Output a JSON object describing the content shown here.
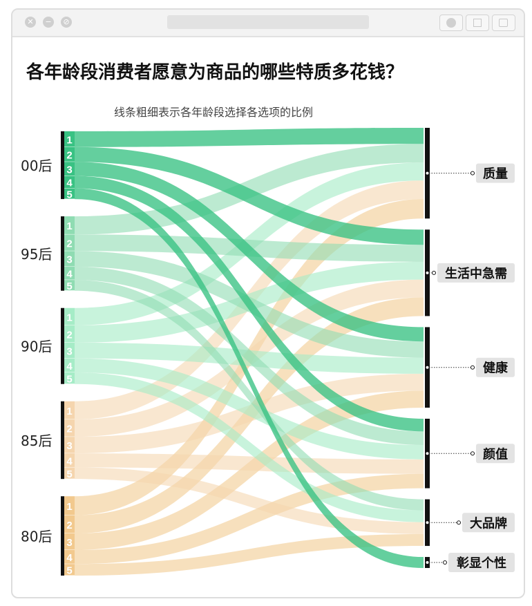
{
  "window": {
    "controls": [
      "close-icon",
      "minimize-icon",
      "maximize-icon"
    ],
    "toolbar_icons": [
      "record-icon",
      "share-icon",
      "copy-icon"
    ]
  },
  "title": "各年龄段消费者愿意为商品的哪些特质多花钱？",
  "subtitle": "线条粗细表示各年龄段选择各选项的比例",
  "colors": {
    "00后": "#39c283",
    "95后": "#8fdcb2",
    "90后": "#a6ecc7",
    "85后": "#f5d5ae",
    "80后": "#f2c98e"
  },
  "chart_data": {
    "type": "sankey",
    "title": "各年龄段消费者愿意为商品的哪些特质多花钱？",
    "subtitle": "线条粗细表示各年龄段选择各选项的比例",
    "sources": [
      "00后",
      "95后",
      "90后",
      "85后",
      "80后"
    ],
    "rank_labels": [
      "1",
      "2",
      "3",
      "4",
      "5"
    ],
    "targets": [
      "质量",
      "生活中急需",
      "健康",
      "颜值",
      "大品牌",
      "彰显个性"
    ],
    "links": [
      {
        "source": "00后",
        "rank": "1",
        "target": "质量",
        "value": 19
      },
      {
        "source": "00后",
        "rank": "2",
        "target": "生活中急需",
        "value": 18
      },
      {
        "source": "00后",
        "rank": "3",
        "target": "健康",
        "value": 17
      },
      {
        "source": "00后",
        "rank": "4",
        "target": "颜值",
        "value": 15
      },
      {
        "source": "00后",
        "rank": "5",
        "target": "彰显个性",
        "value": 13
      },
      {
        "source": "95后",
        "rank": "1",
        "target": "质量",
        "value": 22
      },
      {
        "source": "95后",
        "rank": "2",
        "target": "生活中急需",
        "value": 20
      },
      {
        "source": "95后",
        "rank": "3",
        "target": "健康",
        "value": 19
      },
      {
        "source": "95后",
        "rank": "4",
        "target": "颜值",
        "value": 16
      },
      {
        "source": "95后",
        "rank": "5",
        "target": "大品牌",
        "value": 13
      },
      {
        "source": "90后",
        "rank": "1",
        "target": "质量",
        "value": 21
      },
      {
        "source": "90后",
        "rank": "2",
        "target": "生活中急需",
        "value": 21
      },
      {
        "source": "90后",
        "rank": "3",
        "target": "健康",
        "value": 19
      },
      {
        "source": "90后",
        "rank": "4",
        "target": "颜值",
        "value": 17
      },
      {
        "source": "90后",
        "rank": "5",
        "target": "大品牌",
        "value": 14
      },
      {
        "source": "85后",
        "rank": "1",
        "target": "质量",
        "value": 22
      },
      {
        "source": "85后",
        "rank": "2",
        "target": "生活中急需",
        "value": 21
      },
      {
        "source": "85后",
        "rank": "3",
        "target": "健康",
        "value": 20
      },
      {
        "source": "85后",
        "rank": "4",
        "target": "颜值",
        "value": 17
      },
      {
        "source": "85后",
        "rank": "5",
        "target": "大品牌",
        "value": 14
      },
      {
        "source": "80后",
        "rank": "1",
        "target": "质量",
        "value": 23
      },
      {
        "source": "80后",
        "rank": "2",
        "target": "生活中急需",
        "value": 22
      },
      {
        "source": "80后",
        "rank": "3",
        "target": "健康",
        "value": 20
      },
      {
        "source": "80后",
        "rank": "4",
        "target": "颜值",
        "value": 17
      },
      {
        "source": "80后",
        "rank": "5",
        "target": "大品牌",
        "value": 14
      }
    ]
  }
}
